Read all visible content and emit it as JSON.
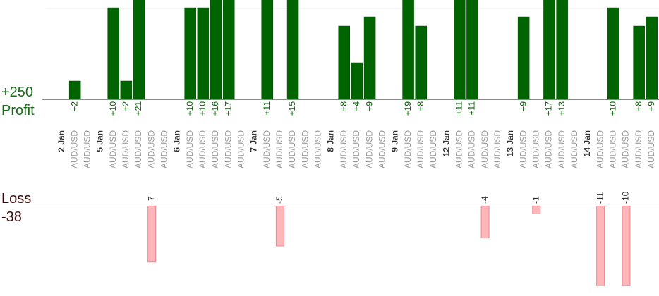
{
  "chart_data": {
    "type": "profit-loss-bars",
    "profit_label": "Profit",
    "profit_total": "+250",
    "loss_label": "Loss",
    "loss_total": -38,
    "profit_ylim": [
      0,
      10.85
    ],
    "loss_ylim": [
      0,
      -10
    ],
    "profit_color": "#006400",
    "loss_color": "#ffb6b9",
    "days": [
      {
        "label": "2 Jan",
        "trades": [
          {
            "symbol": "AUD/USD",
            "value": 2,
            "value_label": "+2"
          },
          {
            "symbol": "AUD/USD",
            "value": null
          }
        ]
      },
      {
        "label": "5 Jan",
        "trades": [
          {
            "symbol": "AUD/USD",
            "value": 10,
            "value_label": "+10"
          },
          {
            "symbol": "AUD/USD",
            "value": 2,
            "value_label": "+2"
          },
          {
            "symbol": "AUD/USD",
            "value": 21,
            "value_label": "+21"
          },
          {
            "symbol": "AUD/USD",
            "value": -7
          },
          {
            "symbol": "AUD/USD",
            "value": null
          }
        ]
      },
      {
        "label": "6 Jan",
        "trades": [
          {
            "symbol": "AUD/USD",
            "value": 10,
            "value_label": "+10"
          },
          {
            "symbol": "AUD/USD",
            "value": 10,
            "value_label": "+10"
          },
          {
            "symbol": "AUD/USD",
            "value": 16,
            "value_label": "+16"
          },
          {
            "symbol": "AUD/USD",
            "value": 17,
            "value_label": "+17"
          },
          {
            "symbol": "AUD/USD",
            "value": null
          }
        ]
      },
      {
        "label": "7 Jan",
        "trades": [
          {
            "symbol": "AUD/USD",
            "value": 11,
            "value_label": "+11"
          },
          {
            "symbol": "AUD/USD",
            "value": -5
          },
          {
            "symbol": "AUD/USD",
            "value": 15,
            "value_label": "+15"
          },
          {
            "symbol": "AUD/USD",
            "value": null
          },
          {
            "symbol": "AUD/USD",
            "value": null
          }
        ]
      },
      {
        "label": "8 Jan",
        "trades": [
          {
            "symbol": "AUD/USD",
            "value": 8,
            "value_label": "+8"
          },
          {
            "symbol": "AUD/USD",
            "value": 4,
            "value_label": "+4"
          },
          {
            "symbol": "AUD/USD",
            "value": 9,
            "value_label": "+9"
          },
          {
            "symbol": "AUD/USD",
            "value": null
          }
        ]
      },
      {
        "label": "9 Jan",
        "trades": [
          {
            "symbol": "AUD/USD",
            "value": 19,
            "value_label": "+19"
          },
          {
            "symbol": "AUD/USD",
            "value": 8,
            "value_label": "+8"
          },
          {
            "symbol": "AUD/USD",
            "value": null
          }
        ]
      },
      {
        "label": "12 Jan",
        "trades": [
          {
            "symbol": "AUD/USD",
            "value": 11,
            "value_label": "+11"
          },
          {
            "symbol": "AUD/USD",
            "value": 11,
            "value_label": "+11"
          },
          {
            "symbol": "AUD/USD",
            "value": -4
          },
          {
            "symbol": "AUD/USD",
            "value": null
          }
        ]
      },
      {
        "label": "13 Jan",
        "trades": [
          {
            "symbol": "AUD/USD",
            "value": 9,
            "value_label": "+9"
          },
          {
            "symbol": "AUD/USD",
            "value": -1
          },
          {
            "symbol": "AUD/USD",
            "value": 17,
            "value_label": "+17"
          },
          {
            "symbol": "AUD/USD",
            "value": 13,
            "value_label": "+13"
          },
          {
            "symbol": "AUD/USD",
            "value": null
          }
        ]
      },
      {
        "label": "14 Jan",
        "trades": [
          {
            "symbol": "AUD/USD",
            "value": -11
          },
          {
            "symbol": "AUD/USD",
            "value": 10,
            "value_label": "+10"
          },
          {
            "symbol": "AUD/USD",
            "value": -10
          },
          {
            "symbol": "AUD/USD",
            "value": 8,
            "value_label": "+8"
          },
          {
            "symbol": "AUD/USD",
            "value": 9,
            "value_label": "+9"
          }
        ]
      }
    ]
  }
}
